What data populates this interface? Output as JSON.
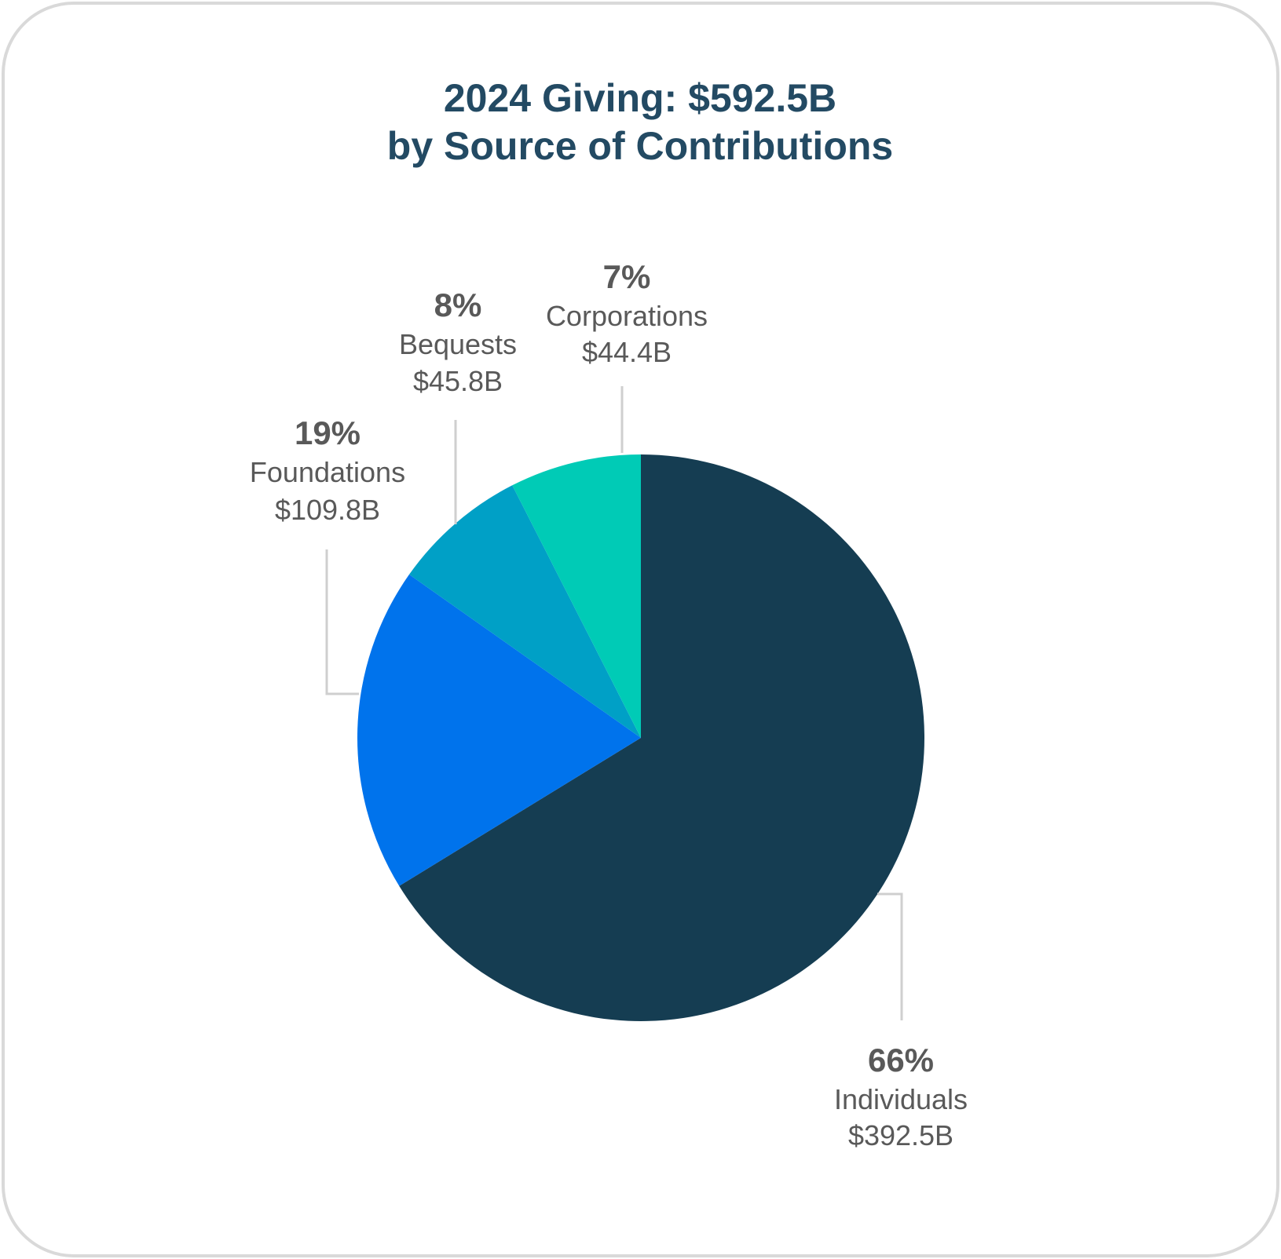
{
  "chart_data": {
    "type": "pie",
    "title": "2024 Giving: $592.5B",
    "subtitle": "by Source of Contributions",
    "slices": [
      {
        "name": "Individuals",
        "percent": 66,
        "percent_label": "66%",
        "amount_label": "$392.5B",
        "value": 392.5,
        "color": "#153d52"
      },
      {
        "name": "Foundations",
        "percent": 19,
        "percent_label": "19%",
        "amount_label": "$109.8B",
        "value": 109.8,
        "color": "#0073ec"
      },
      {
        "name": "Bequests",
        "percent": 8,
        "percent_label": "8%",
        "amount_label": "$45.8B",
        "value": 45.8,
        "color": "#00a0c6"
      },
      {
        "name": "Corporations",
        "percent": 7,
        "percent_label": "7%",
        "amount_label": "$44.4B",
        "value": 44.4,
        "color": "#00cbb6"
      }
    ]
  },
  "colors": {
    "title": "#234a63",
    "label_text": "#595959",
    "leader_line": "#cfcfcf",
    "card_border": "#d9d9d9"
  }
}
